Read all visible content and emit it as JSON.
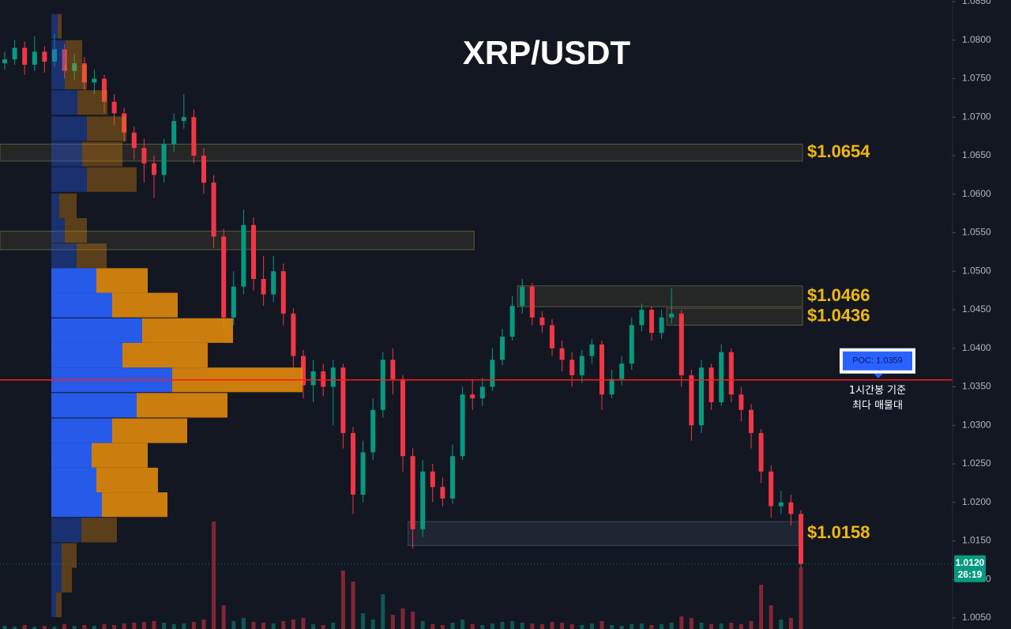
{
  "chart_data": {
    "type": "candlestick",
    "title": "XRP/USDT",
    "up_color": "#089981",
    "down_color": "#f23645",
    "ylim": [
      1.00356,
      1.08521
    ],
    "yticks": [
      {
        "value": 1.085,
        "label": "1.0850"
      },
      {
        "value": 1.08,
        "label": "1.0800"
      },
      {
        "value": 1.075,
        "label": "1.0750"
      },
      {
        "value": 1.07,
        "label": "1.0700"
      },
      {
        "value": 1.065,
        "label": "1.0650"
      },
      {
        "value": 1.06,
        "label": "1.0600"
      },
      {
        "value": 1.055,
        "label": "1.0550"
      },
      {
        "value": 1.05,
        "label": "1.0500"
      },
      {
        "value": 1.045,
        "label": "1.0450"
      },
      {
        "value": 1.04,
        "label": "1.0400"
      },
      {
        "value": 1.035,
        "label": "1.0350"
      },
      {
        "value": 1.03,
        "label": "1.0300"
      },
      {
        "value": 1.025,
        "label": "1.0250"
      },
      {
        "value": 1.02,
        "label": "1.0200"
      },
      {
        "value": 1.015,
        "label": "1.0150"
      },
      {
        "value": 1.01,
        "label": "1.0100"
      },
      {
        "value": 1.005,
        "label": "1.0050"
      }
    ],
    "open": [
      1.077,
      1.0775,
      1.079,
      1.0768,
      1.0785,
      1.0772,
      1.0788,
      1.076,
      1.077,
      1.0745,
      1.075,
      1.072,
      1.0705,
      1.068,
      1.066,
      1.064,
      1.0625,
      1.0665,
      1.0695,
      1.07,
      1.065,
      1.0615,
      1.0545,
      1.044,
      1.048,
      1.056,
      1.049,
      1.047,
      1.05,
      1.0445,
      1.039,
      1.0352,
      1.037,
      1.035,
      1.0375,
      1.029,
      1.021,
      1.0265,
      1.032,
      1.0385,
      1.036,
      1.026,
      1.0165,
      1.024,
      1.022,
      1.0205,
      1.026,
      1.034,
      1.0335,
      1.035,
      1.0385,
      1.0415,
      1.0455,
      1.048,
      1.044,
      1.043,
      1.04,
      1.0385,
      1.0365,
      1.039,
      1.0405,
      1.034,
      1.036,
      1.038,
      1.043,
      1.045,
      1.042,
      1.044,
      1.0445,
      1.0365,
      1.03,
      1.0375,
      1.033,
      1.0395,
      1.034,
      1.032,
      1.029,
      1.024,
      1.0195,
      1.02,
      1.0185
    ],
    "high": [
      1.0785,
      1.08,
      1.0798,
      1.0805,
      1.0792,
      1.0808,
      1.0795,
      1.0782,
      1.0778,
      1.0762,
      1.0755,
      1.073,
      1.0712,
      1.0688,
      1.0672,
      1.065,
      1.0672,
      1.0705,
      1.073,
      1.071,
      1.066,
      1.0625,
      1.0555,
      1.05,
      1.058,
      1.057,
      1.052,
      1.052,
      1.051,
      1.0452,
      1.0398,
      1.0385,
      1.038,
      1.0385,
      1.038,
      1.0298,
      1.028,
      1.0335,
      1.0395,
      1.04,
      1.0365,
      1.027,
      1.0255,
      1.025,
      1.0232,
      1.0275,
      1.035,
      1.036,
      1.0362,
      1.04,
      1.0425,
      1.0468,
      1.049,
      1.0485,
      1.0448,
      1.0438,
      1.041,
      1.0395,
      1.0398,
      1.0412,
      1.041,
      1.0372,
      1.039,
      1.044,
      1.0458,
      1.0455,
      1.045,
      1.0478,
      1.045,
      1.0372,
      1.0385,
      1.038,
      1.0405,
      1.04,
      1.035,
      1.0328,
      1.0295,
      1.0248,
      1.0215,
      1.021,
      1.019
    ],
    "low": [
      1.0762,
      1.0768,
      1.0755,
      1.076,
      1.0758,
      1.0765,
      1.075,
      1.0748,
      1.0735,
      1.073,
      1.0705,
      1.069,
      1.0668,
      1.0645,
      1.0615,
      1.0595,
      1.0615,
      1.0655,
      1.0685,
      1.064,
      1.06,
      1.053,
      1.0425,
      1.043,
      1.047,
      1.0475,
      1.0455,
      1.046,
      1.043,
      1.0375,
      1.0335,
      1.033,
      1.0338,
      1.03,
      1.027,
      1.0185,
      1.02,
      1.0255,
      1.031,
      1.034,
      1.024,
      1.014,
      1.0155,
      1.02,
      1.0195,
      1.0198,
      1.0255,
      1.032,
      1.0325,
      1.0345,
      1.0378,
      1.041,
      1.0445,
      1.043,
      1.042,
      1.039,
      1.037,
      1.035,
      1.0355,
      1.038,
      1.032,
      1.0335,
      1.0352,
      1.0372,
      1.0422,
      1.041,
      1.0412,
      1.0432,
      1.035,
      1.028,
      1.029,
      1.032,
      1.0325,
      1.033,
      1.0305,
      1.027,
      1.0225,
      1.018,
      1.0185,
      1.017,
      1.0115
    ],
    "close": [
      1.0775,
      1.079,
      1.0768,
      1.0785,
      1.0772,
      1.0788,
      1.076,
      1.077,
      1.0745,
      1.075,
      1.072,
      1.0705,
      1.068,
      1.066,
      1.064,
      1.0625,
      1.0665,
      1.0695,
      1.07,
      1.065,
      1.0615,
      1.0545,
      1.044,
      1.048,
      1.056,
      1.049,
      1.047,
      1.05,
      1.0445,
      1.039,
      1.0352,
      1.037,
      1.035,
      1.0375,
      1.029,
      1.021,
      1.0265,
      1.032,
      1.0385,
      1.036,
      1.026,
      1.0165,
      1.024,
      1.022,
      1.0205,
      1.026,
      1.034,
      1.0335,
      1.035,
      1.0385,
      1.0415,
      1.0455,
      1.048,
      1.044,
      1.043,
      1.04,
      1.0385,
      1.0365,
      1.039,
      1.0405,
      1.034,
      1.036,
      1.038,
      1.043,
      1.045,
      1.042,
      1.044,
      1.0445,
      1.0365,
      1.03,
      1.0375,
      1.033,
      1.0395,
      1.034,
      1.032,
      1.029,
      1.024,
      1.0195,
      1.02,
      1.0185,
      1.012
    ],
    "volume": [
      4,
      3,
      5,
      3,
      4,
      3,
      6,
      4,
      5,
      4,
      6,
      5,
      7,
      8,
      9,
      10,
      8,
      6,
      7,
      9,
      12,
      136,
      30,
      10,
      14,
      9,
      8,
      7,
      10,
      12,
      14,
      6,
      5,
      8,
      74,
      60,
      20,
      12,
      44,
      18,
      26,
      22,
      10,
      6,
      5,
      8,
      12,
      6,
      5,
      7,
      9,
      10,
      8,
      7,
      6,
      9,
      8,
      6,
      5,
      7,
      10,
      5,
      4,
      6,
      7,
      5,
      6,
      8,
      16,
      14,
      8,
      6,
      7,
      8,
      6,
      10,
      56,
      30,
      12,
      14,
      78
    ],
    "profile": {
      "prices": [
        1.0818,
        1.0784,
        1.0752,
        1.0719,
        1.0685,
        1.0652,
        1.0619,
        1.0585,
        1.0553,
        1.052,
        1.0488,
        1.0456,
        1.0423,
        1.0391,
        1.0359,
        1.0326,
        1.0293,
        1.0261,
        1.0229,
        1.0197,
        1.0164,
        1.0131,
        1.0099,
        1.0067
      ],
      "buy": [
        8,
        18,
        17,
        33,
        45,
        39,
        45,
        10,
        17,
        32,
        57,
        77,
        115,
        90,
        153,
        108,
        77,
        51,
        57,
        64,
        38,
        13,
        13,
        6
      ],
      "sell": [
        5,
        21,
        28,
        38,
        50,
        51,
        63,
        22,
        28,
        38,
        65,
        83,
        115,
        108,
        165,
        115,
        95,
        71,
        78,
        83,
        45,
        19,
        13,
        7
      ],
      "buy_color": "#2962ff",
      "sell_color": "#e08a0b",
      "value_area": [
        1.0197,
        1.0488
      ]
    },
    "zones": [
      {
        "label": "$1.0654",
        "low": 1.0643,
        "high": 1.0665,
        "start": 0,
        "end": 80
      },
      {
        "low": 1.0528,
        "high": 1.0552,
        "start": 0,
        "end": 47
      },
      {
        "label": "$1.0466",
        "low": 1.0454,
        "high": 1.0481,
        "start": 52,
        "end": 80
      },
      {
        "label": "$1.0436",
        "low": 1.043,
        "high": 1.0452,
        "start": 67,
        "end": 80
      },
      {
        "label": "$1.0158",
        "low": 1.0144,
        "high": 1.0175,
        "start": 41,
        "end": 80
      }
    ],
    "poc": {
      "value": 1.0359,
      "label": "POC: 1.0359"
    },
    "annotation": [
      "1시간봉 기준",
      "최다 매물대"
    ],
    "last": {
      "value": 1.012,
      "label": "1.0120",
      "timer": "26:19"
    }
  }
}
